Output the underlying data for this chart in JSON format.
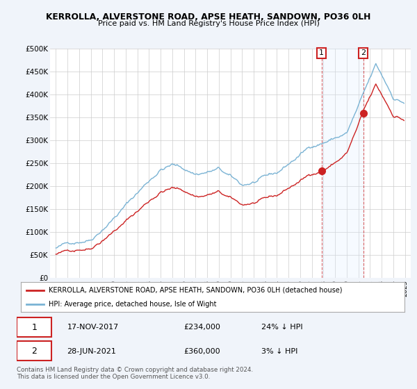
{
  "title": "KERROLLA, ALVERSTONE ROAD, APSE HEATH, SANDOWN, PO36 0LH",
  "subtitle": "Price paid vs. HM Land Registry's House Price Index (HPI)",
  "ylim": [
    0,
    500000
  ],
  "yticks": [
    0,
    50000,
    100000,
    150000,
    200000,
    250000,
    300000,
    350000,
    400000,
    450000,
    500000
  ],
  "ytick_labels": [
    "£0",
    "£50K",
    "£100K",
    "£150K",
    "£200K",
    "£250K",
    "£300K",
    "£350K",
    "£400K",
    "£450K",
    "£500K"
  ],
  "hpi_color": "#7ab3d4",
  "price_color": "#cc2222",
  "shading_color": "#ddeeff",
  "legend_line1": "KERROLLA, ALVERSTONE ROAD, APSE HEATH, SANDOWN, PO36 0LH (detached house)",
  "legend_line2": "HPI: Average price, detached house, Isle of Wight",
  "sale1_date": "17-NOV-2017",
  "sale1_price": "£234,000",
  "sale1_hpi": "24% ↓ HPI",
  "sale2_date": "28-JUN-2021",
  "sale2_price": "£360,000",
  "sale2_hpi": "3% ↓ HPI",
  "footnote": "Contains HM Land Registry data © Crown copyright and database right 2024.\nThis data is licensed under the Open Government Licence v3.0.",
  "background_color": "#f0f4fa",
  "plot_bg_color": "#ffffff",
  "grid_color": "#cccccc"
}
